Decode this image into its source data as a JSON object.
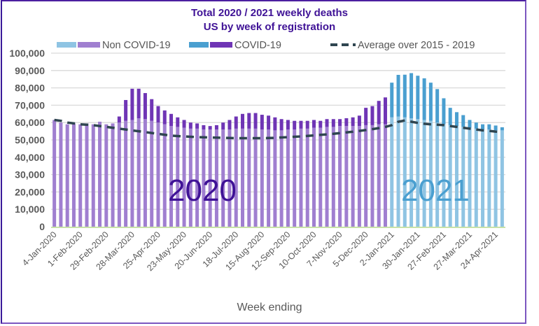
{
  "chart_data": {
    "type": "bar",
    "stacked": true,
    "title": "Total 2020 / 2021 weekly deaths",
    "subtitle": "US by week of registration",
    "xlabel": "Week ending",
    "ylabel": "",
    "ylim": [
      0,
      100000
    ],
    "yticks": [
      0,
      10000,
      20000,
      30000,
      40000,
      50000,
      60000,
      70000,
      80000,
      90000,
      100000
    ],
    "ytick_labels": [
      "0",
      "10,000",
      "20,000",
      "30,000",
      "40,000",
      "50,000",
      "60,000",
      "70,000",
      "80,000",
      "90,000",
      "100,000"
    ],
    "grid": true,
    "legend_position": "top",
    "legend": [
      {
        "label": "Non COVID-19",
        "colors": [
          "#8fc4e3",
          "#a07fd0"
        ]
      },
      {
        "label": "COVID-19",
        "colors": [
          "#4a9fd0",
          "#6f35b5"
        ]
      },
      {
        "label": "Average over 2015 - 2019",
        "style": "dashed",
        "color": "#2f4550"
      }
    ],
    "annotations": [
      "2020",
      "2021"
    ],
    "colors": {
      "non_covid_2020": "#a07fd0",
      "covid_2020": "#6f35b5",
      "non_covid_2021": "#8fc4e3",
      "covid_2021": "#4a9fd0",
      "average": "#2f4550",
      "axis": "#b5d98c",
      "grid": "#d9d9d9"
    },
    "x_tick_labels": [
      "4-Jan-2020",
      "1-Feb-2020",
      "29-Feb-2020",
      "28-Mar-2020",
      "25-Apr-2020",
      "23-May-2020",
      "20-Jun-2020",
      "18-Jul-2020",
      "15-Aug-2020",
      "12-Sep-2020",
      "10-Oct-2020",
      "7-Nov-2020",
      "5-Dec-2020",
      "2-Jan-2021",
      "30-Jan-2021",
      "27-Feb-2021",
      "27-Mar-2021",
      "24-Apr-2021"
    ],
    "x_tick_every": 4,
    "weeks_2020_count": 52,
    "series": [
      {
        "name": "Non COVID-19",
        "values": [
          61500,
          60000,
          59000,
          59500,
          59000,
          59500,
          59000,
          60500,
          59000,
          59500,
          60000,
          61000,
          61500,
          62500,
          62000,
          61000,
          60000,
          59000,
          58000,
          57500,
          57000,
          56500,
          56500,
          56000,
          56000,
          56000,
          56000,
          56000,
          56500,
          56500,
          56500,
          56500,
          56000,
          56000,
          55500,
          55500,
          56000,
          56000,
          56500,
          56500,
          57000,
          57000,
          57500,
          57500,
          58000,
          58000,
          58000,
          58000,
          58500,
          58500,
          59000,
          59000,
          63000,
          63500,
          63000,
          62500,
          62000,
          61500,
          61000,
          60000,
          59000,
          58500,
          58000,
          57500,
          57000,
          56500,
          56000,
          56000,
          55500,
          55500
        ]
      },
      {
        "name": "COVID-19",
        "values": [
          0,
          0,
          0,
          0,
          0,
          0,
          0,
          0,
          0,
          0,
          3500,
          12000,
          18000,
          17000,
          15000,
          12500,
          9500,
          8000,
          7000,
          5500,
          4500,
          3500,
          3000,
          2500,
          2000,
          2500,
          4000,
          5500,
          7000,
          8500,
          9000,
          9000,
          8500,
          8000,
          7500,
          6500,
          5500,
          5000,
          4500,
          4500,
          4500,
          4000,
          4500,
          4500,
          4000,
          4500,
          5000,
          6000,
          10000,
          11000,
          13500,
          15500,
          20000,
          24000,
          24600,
          26000,
          25000,
          24000,
          22000,
          19300,
          15000,
          10000,
          8000,
          6800,
          4500,
          3500,
          3000,
          3000,
          2800,
          1800
        ]
      },
      {
        "name": "Average over 2015 - 2019",
        "values": [
          61500,
          61000,
          60000,
          59500,
          59000,
          58800,
          58500,
          58000,
          57500,
          57000,
          56500,
          56000,
          55500,
          55000,
          54500,
          54000,
          53500,
          53000,
          52500,
          52200,
          52000,
          51800,
          51600,
          51500,
          51400,
          51300,
          51200,
          51100,
          51000,
          51000,
          51000,
          51000,
          51000,
          51100,
          51200,
          51400,
          51600,
          51800,
          52000,
          52300,
          52600,
          52900,
          53200,
          53500,
          53900,
          54300,
          54700,
          55200,
          55700,
          56200,
          56800,
          57500,
          58500,
          60500,
          61200,
          60500,
          59800,
          59300,
          59000,
          58800,
          58500,
          58000,
          57500,
          57000,
          56500,
          56000,
          55500,
          55200,
          54800,
          54500
        ]
      }
    ]
  }
}
